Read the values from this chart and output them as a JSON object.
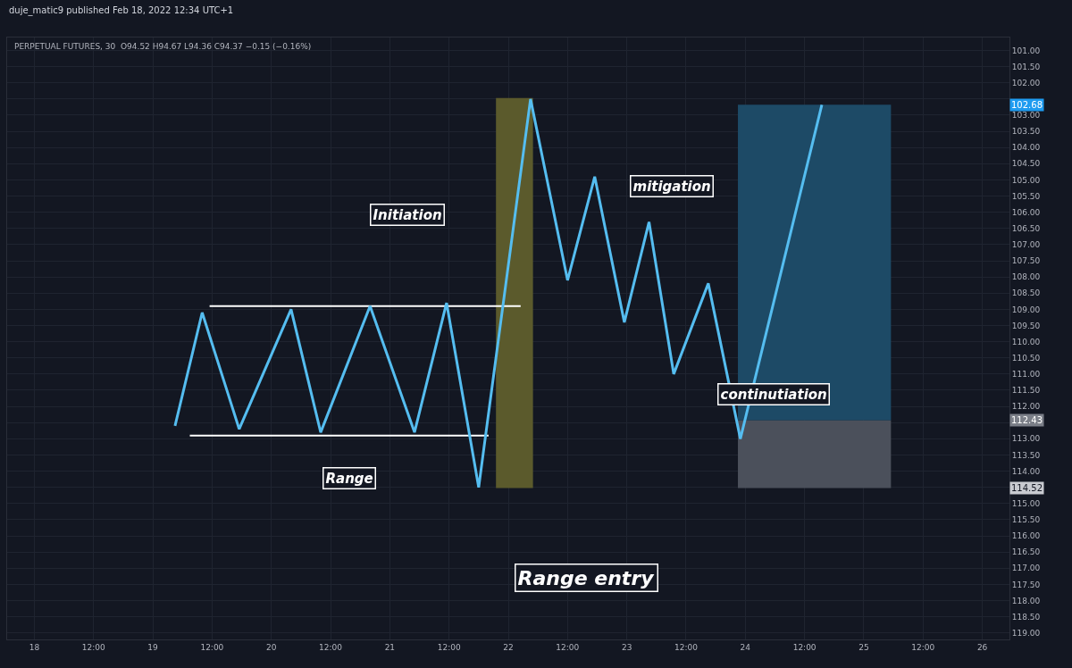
{
  "chart_data": {
    "type": "line",
    "title": "duje_matic9 published Feb 18, 2022 12:34 UTC+1",
    "subtitle": "PERPETUAL FUTURES, 30  O94.52 H94.67 L94.36 C94.37 −0.15 (−0.16%)",
    "series": [
      {
        "type": "bar",
        "color": "#5b5a2c",
        "x": [
          "2022-02-22T01:15"
        ],
        "base": [
          114.52
        ],
        "values": [
          -12.05
        ]
      },
      {
        "type": "bar",
        "color": "#1d4a66",
        "x": [
          "2022-02-24T14:00"
        ],
        "base": [
          112.43
        ],
        "values": [
          -9.75
        ]
      },
      {
        "type": "bar",
        "color": "#4b505b",
        "x": [
          "2022-02-24T14:00"
        ],
        "base": [
          114.52
        ],
        "values": [
          -2.09
        ]
      },
      {
        "type": "line",
        "color": "#ffffff",
        "x": [
          "2022-02-19T11:30",
          "2022-02-22T02:30"
        ],
        "values": [
          108.9,
          108.9
        ]
      },
      {
        "type": "line",
        "color": "#ffffff",
        "x": [
          "2022-02-19T07:30",
          "2022-02-21T20:00"
        ],
        "values": [
          112.9,
          112.9
        ]
      },
      {
        "color": "#55bdf0",
        "x": [
          "2022-02-19T04:30",
          "2022-02-19T10:00",
          "2022-02-19T17:30",
          "2022-02-20T04:00",
          "2022-02-20T10:00",
          "2022-02-20T20:00",
          "2022-02-21T05:00",
          "2022-02-21T11:30",
          "2022-02-21T18:00",
          "2022-02-22T04:30",
          "2022-02-22T12:00",
          "2022-02-22T17:30",
          "2022-02-22T23:30",
          "2022-02-23T04:30",
          "2022-02-23T09:30",
          "2022-02-23T16:30",
          "2022-02-23T23:00",
          "2022-02-24T15:30"
        ],
        "values": [
          112.6,
          109.1,
          112.7,
          109.0,
          112.8,
          108.9,
          112.8,
          108.8,
          114.5,
          102.5,
          108.1,
          104.9,
          109.4,
          106.3,
          111.0,
          108.2,
          113.0,
          102.68
        ]
      }
    ],
    "annotations": [
      "Initiation",
      "Range",
      "mitigation",
      "continutiation",
      "Range entry",
      {
        "text": "102.68",
        "y": 102.68
      },
      {
        "text": "112.43",
        "y": 112.43
      },
      {
        "text": "114.52",
        "y": 114.52
      }
    ],
    "xlim": [
      "2022-02-17T18:30",
      "2022-02-26T05:30"
    ],
    "xticks": [
      {
        "value": "2022-02-18T00:00",
        "label": "18"
      },
      {
        "value": "2022-02-18T12:00",
        "label": "12:00"
      },
      {
        "value": "2022-02-19T00:00",
        "label": "19"
      },
      {
        "value": "2022-02-19T12:00",
        "label": "12:00"
      },
      {
        "value": "2022-02-20T00:00",
        "label": "20"
      },
      {
        "value": "2022-02-20T12:00",
        "label": "12:00"
      },
      {
        "value": "2022-02-21T00:00",
        "label": "21"
      },
      {
        "value": "2022-02-21T12:00",
        "label": "12:00"
      },
      {
        "value": "2022-02-22T00:00",
        "label": "22"
      },
      {
        "value": "2022-02-22T12:00",
        "label": "12:00"
      },
      {
        "value": "2022-02-23T00:00",
        "label": "23"
      },
      {
        "value": "2022-02-23T12:00",
        "label": "12:00"
      },
      {
        "value": "2022-02-24T00:00",
        "label": "24"
      },
      {
        "value": "2022-02-24T12:00",
        "label": "12:00"
      },
      {
        "value": "2022-02-25T00:00",
        "label": "25"
      },
      {
        "value": "2022-02-25T12:00",
        "label": "12:00"
      },
      {
        "value": "2022-02-26T00:00",
        "label": "26"
      }
    ],
    "ylim": [
      119.2,
      100.6
    ],
    "yticks": [
      {
        "value": 101,
        "label": "101.00"
      },
      {
        "value": 101.5,
        "label": "101.50"
      },
      {
        "value": 102,
        "label": "102.00"
      },
      {
        "value": 102.5,
        "label": null
      },
      {
        "value": 103,
        "label": "103.00"
      },
      {
        "value": 103.5,
        "label": "103.50"
      },
      {
        "value": 104,
        "label": "104.00"
      },
      {
        "value": 104.5,
        "label": "104.50"
      },
      {
        "value": 105,
        "label": "105.00"
      },
      {
        "value": 105.5,
        "label": "105.50"
      },
      {
        "value": 106,
        "label": "106.00"
      },
      {
        "value": 106.5,
        "label": "106.50"
      },
      {
        "value": 107,
        "label": "107.00"
      },
      {
        "value": 107.5,
        "label": "107.50"
      },
      {
        "value": 108,
        "label": "108.00"
      },
      {
        "value": 108.5,
        "label": "108.50"
      },
      {
        "value": 109,
        "label": "109.00"
      },
      {
        "value": 109.5,
        "label": "109.50"
      },
      {
        "value": 110,
        "label": "110.00"
      },
      {
        "value": 110.5,
        "label": "110.50"
      },
      {
        "value": 111,
        "label": "111.00"
      },
      {
        "value": 111.5,
        "label": "111.50"
      },
      {
        "value": 112,
        "label": "112.00"
      },
      {
        "value": 112.5,
        "label": null
      },
      {
        "value": 113,
        "label": "113.00"
      },
      {
        "value": 113.5,
        "label": "113.50"
      },
      {
        "value": 114,
        "label": "114.00"
      },
      {
        "value": 114.5,
        "label": null
      },
      {
        "value": 115,
        "label": "115.00"
      },
      {
        "value": 115.5,
        "label": "115.50"
      },
      {
        "value": 116,
        "label": "116.00"
      },
      {
        "value": 116.5,
        "label": "116.50"
      },
      {
        "value": 117,
        "label": "117.00"
      },
      {
        "value": 117.5,
        "label": "117.50"
      },
      {
        "value": 118,
        "label": "118.00"
      },
      {
        "value": 118.5,
        "label": "118.50"
      },
      {
        "value": 119,
        "label": "119.00"
      }
    ],
    "grid": true
  }
}
